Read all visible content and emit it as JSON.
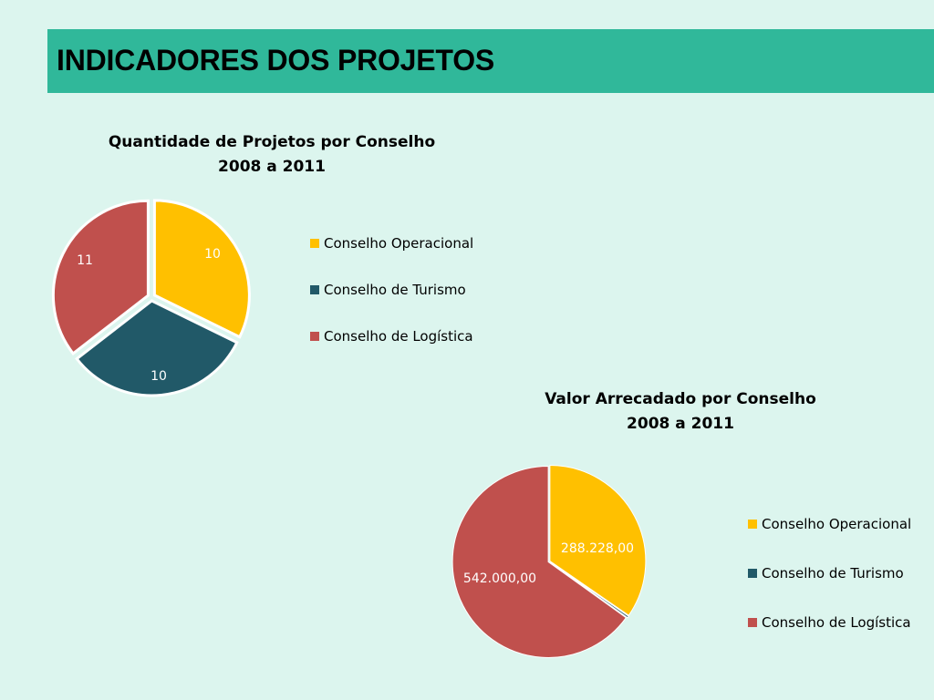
{
  "header": {
    "title": "INDICADORES DOS PROJETOS"
  },
  "colors": {
    "background": "#dcf5ee",
    "header": "#30b89a"
  },
  "chart_data": [
    {
      "type": "pie",
      "title": [
        "Quantidade de Projetos por Conselho",
        "2008 a 2011"
      ],
      "categories": [
        "Conselho Operacional",
        "Conselho de Turismo",
        "Conselho de Logística"
      ],
      "values": [
        10,
        10,
        11
      ],
      "labels": [
        "10",
        "10",
        "11"
      ],
      "colors": [
        "#ffc000",
        "#215968",
        "#c0504d"
      ],
      "legend": "right"
    },
    {
      "type": "pie",
      "title": [
        "Valor Arrecadado por Conselho",
        "2008 a 2011"
      ],
      "categories": [
        "Conselho Operacional",
        "Conselho de Turismo",
        "Conselho de Logística"
      ],
      "values": [
        288228.0,
        2500,
        542000.0
      ],
      "labels": [
        "288.228,00",
        "",
        "542.000,00"
      ],
      "colors": [
        "#ffc000",
        "#215968",
        "#c0504d"
      ],
      "legend": "right"
    }
  ]
}
